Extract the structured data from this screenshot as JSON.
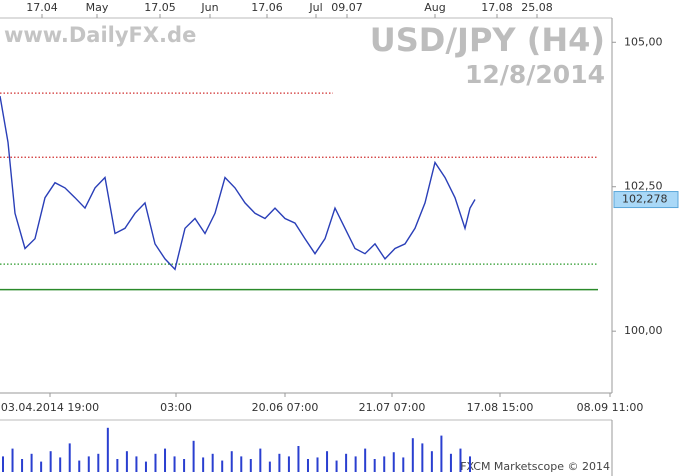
{
  "chart_data": {
    "type": "line",
    "title": "USD/JPY (H4)",
    "subtitle": "12/8/2014",
    "watermark": "www.DailyFX.de",
    "credit": "FXCM Marketscope © 2014",
    "color": "#2a3fb8",
    "x": [
      0,
      1.6,
      3,
      5,
      7,
      9,
      11,
      13,
      15,
      17,
      19,
      21,
      23,
      25,
      27,
      29,
      31,
      33,
      35,
      37,
      39,
      41,
      43,
      45,
      47,
      49,
      51,
      53,
      55,
      57,
      59,
      61,
      63,
      65,
      67,
      69,
      71,
      73,
      75,
      77,
      79,
      81,
      83,
      85,
      87,
      89,
      91,
      93,
      94,
      95
    ],
    "values": [
      104.07,
      103.27,
      102.04,
      101.43,
      101.6,
      102.31,
      102.57,
      102.48,
      102.31,
      102.13,
      102.48,
      102.66,
      101.69,
      101.78,
      102.04,
      102.22,
      101.51,
      101.25,
      101.07,
      101.78,
      101.95,
      101.69,
      102.04,
      102.66,
      102.48,
      102.22,
      102.04,
      101.95,
      102.13,
      101.95,
      101.87,
      101.6,
      101.34,
      101.6,
      102.13,
      101.78,
      101.43,
      101.34,
      101.51,
      101.25,
      101.43,
      101.51,
      101.78,
      102.22,
      102.92,
      102.66,
      102.31,
      101.78,
      102.13,
      102.278
    ],
    "xlim": [
      0,
      122.4
    ],
    "ylim": [
      98.93,
      105.42
    ],
    "yticks": [
      {
        "value": 100,
        "label": "100,00"
      },
      {
        "value": 102.5,
        "label": "102,50"
      },
      {
        "value": 105,
        "label": "105,00"
      }
    ],
    "xticks": [
      {
        "value": 10,
        "label": "03.04.2014 19:00"
      },
      {
        "value": 35.2,
        "label": "03:00"
      },
      {
        "value": 57,
        "label": "20.06 07:00"
      },
      {
        "value": 78.4,
        "label": "21.07 07:00"
      },
      {
        "value": 100,
        "label": "17.08 15:00"
      },
      {
        "value": 122,
        "label": "08.09 11:00"
      }
    ],
    "x2ticks": [
      {
        "value": 8.4,
        "label": "17.04"
      },
      {
        "value": 19.4,
        "label": "May"
      },
      {
        "value": 32,
        "label": "17.05"
      },
      {
        "value": 42,
        "label": "Jun"
      },
      {
        "value": 53.4,
        "label": "17.06"
      },
      {
        "value": 63.2,
        "label": "Jul"
      },
      {
        "value": 69.4,
        "label": "09.07"
      },
      {
        "value": 87,
        "label": "Aug"
      },
      {
        "value": 99.4,
        "label": "17.08"
      },
      {
        "value": 107.4,
        "label": "25.08"
      }
    ],
    "last": {
      "value": 102.278,
      "label": "102,278"
    },
    "levels": [
      {
        "value": 104.12,
        "x_end": 66.6,
        "color": "#d03030",
        "style": "dotted"
      },
      {
        "value": 103.01,
        "x_end": 119.6,
        "color": "#d03030",
        "style": "dotted"
      },
      {
        "value": 101.16,
        "x_end": 119.6,
        "color": "#2a9a2a",
        "style": "dotted"
      },
      {
        "value": 100.72,
        "x_end": 119.6,
        "color": "#2a8a2a",
        "style": "solid"
      }
    ],
    "volume": {
      "color": "#2a3fd0",
      "ylim": [
        0,
        100
      ],
      "values": [
        30,
        45,
        25,
        35,
        20,
        40,
        28,
        55,
        22,
        30,
        35,
        85,
        25,
        40,
        30,
        20,
        35,
        45,
        30,
        25,
        60,
        28,
        35,
        22,
        40,
        30,
        25,
        45,
        20,
        35,
        30,
        50,
        25,
        28,
        40,
        22,
        35,
        30,
        45,
        25,
        30,
        38,
        28,
        65,
        55,
        40,
        70,
        35,
        45,
        30
      ]
    }
  }
}
